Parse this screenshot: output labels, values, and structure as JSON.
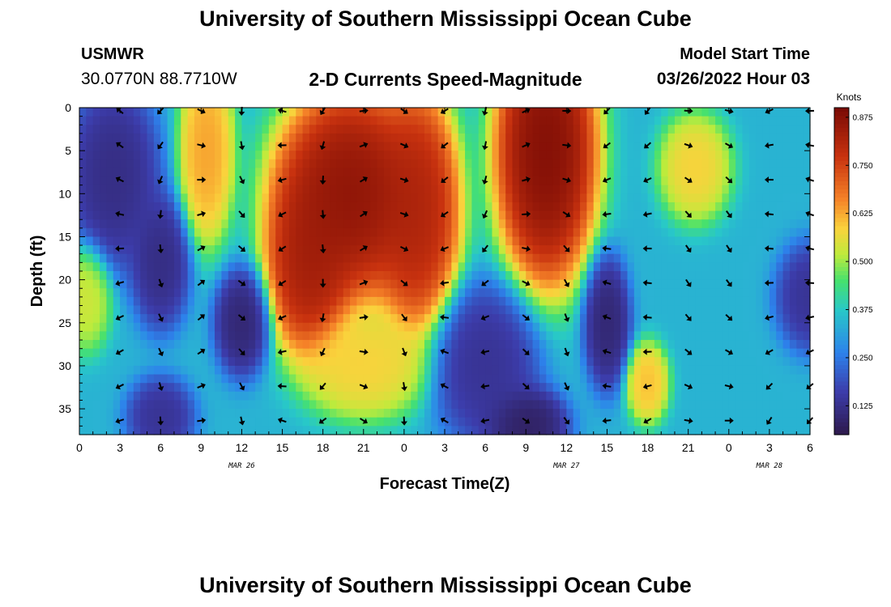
{
  "header": {
    "title": "University of Southern Mississippi Ocean Cube",
    "station_id": "USMWR",
    "coords": "30.0770N  88.7710W",
    "subtitle": "2-D Currents Speed-Magnitude",
    "model_label": "Model Start Time",
    "model_time": "03/26/2022 Hour 03"
  },
  "footer": {
    "title": "University of Southern Mississippi Ocean Cube"
  },
  "chart_data": {
    "type": "heatmap",
    "title": "2-D Currents Speed-Magnitude",
    "xlabel": "Forecast Time(Z)",
    "ylabel": "Depth (ft)",
    "x_hours_range": [
      0,
      54
    ],
    "ylim": [
      0,
      38
    ],
    "y_inverted": true,
    "x_ticks": [
      {
        "hour": 0,
        "label": "0"
      },
      {
        "hour": 3,
        "label": "3"
      },
      {
        "hour": 6,
        "label": "6"
      },
      {
        "hour": 9,
        "label": "9"
      },
      {
        "hour": 12,
        "label": "12"
      },
      {
        "hour": 15,
        "label": "15"
      },
      {
        "hour": 18,
        "label": "18"
      },
      {
        "hour": 21,
        "label": "21"
      },
      {
        "hour": 24,
        "label": "0"
      },
      {
        "hour": 27,
        "label": "3"
      },
      {
        "hour": 30,
        "label": "6"
      },
      {
        "hour": 33,
        "label": "9"
      },
      {
        "hour": 36,
        "label": "12"
      },
      {
        "hour": 39,
        "label": "15"
      },
      {
        "hour": 42,
        "label": "18"
      },
      {
        "hour": 45,
        "label": "21"
      },
      {
        "hour": 48,
        "label": "0"
      },
      {
        "hour": 51,
        "label": "3"
      },
      {
        "hour": 54,
        "label": "6"
      }
    ],
    "date_labels": [
      {
        "hour": 12,
        "label": "MAR 26"
      },
      {
        "hour": 36,
        "label": "MAR 27"
      },
      {
        "hour": 51,
        "label": "MAR 28"
      }
    ],
    "y_ticks": [
      0,
      5,
      10,
      15,
      20,
      25,
      30,
      35
    ],
    "colorbar": {
      "unit": "Knots",
      "range": [
        0.05,
        0.9
      ],
      "ticks": [
        "0.125",
        "0.250",
        "0.375",
        "0.500",
        "0.625",
        "0.750",
        "0.875"
      ],
      "tick_values": [
        0.125,
        0.25,
        0.375,
        0.5,
        0.625,
        0.75,
        0.875
      ]
    },
    "speed_features": [
      {
        "hour": 2.5,
        "depth": 8,
        "speed": 0.1,
        "hspread": 2.2,
        "dspread": 7
      },
      {
        "hour": 6,
        "depth": 18,
        "speed": 0.1,
        "hspread": 1.4,
        "dspread": 5
      },
      {
        "hour": 6,
        "depth": 36,
        "speed": 0.12,
        "hspread": 1.6,
        "dspread": 3
      },
      {
        "hour": 9.4,
        "depth": 5,
        "speed": 0.65,
        "hspread": 1.3,
        "dspread": 7
      },
      {
        "hour": 12,
        "depth": 25,
        "speed": 0.08,
        "hspread": 1.3,
        "dspread": 4
      },
      {
        "hour": 20,
        "depth": 10,
        "speed": 0.9,
        "hspread": 3.6,
        "dspread": 8
      },
      {
        "hour": 17,
        "depth": 18,
        "speed": 0.86,
        "hspread": 2,
        "dspread": 7
      },
      {
        "hour": 25,
        "depth": 12,
        "speed": 0.84,
        "hspread": 2,
        "dspread": 9
      },
      {
        "hour": 21,
        "depth": 30,
        "speed": 0.6,
        "hspread": 3,
        "dspread": 4
      },
      {
        "hour": 30,
        "depth": 30,
        "speed": 0.12,
        "hspread": 2.5,
        "dspread": 6
      },
      {
        "hour": 33,
        "depth": 37,
        "speed": 0.06,
        "hspread": 2,
        "dspread": 3
      },
      {
        "hour": 34.5,
        "depth": 5,
        "speed": 0.92,
        "hspread": 2.4,
        "dspread": 10
      },
      {
        "hour": 39,
        "depth": 25,
        "speed": 0.08,
        "hspread": 1.1,
        "dspread": 5
      },
      {
        "hour": 42,
        "depth": 32,
        "speed": 0.62,
        "hspread": 1,
        "dspread": 3
      },
      {
        "hour": 45.5,
        "depth": 7,
        "speed": 0.6,
        "hspread": 1.7,
        "dspread": 4
      },
      {
        "hour": 54,
        "depth": 22,
        "speed": 0.12,
        "hspread": 1.6,
        "dspread": 4
      },
      {
        "hour": 0.5,
        "depth": 22,
        "speed": 0.55,
        "hspread": 1.2,
        "dspread": 4
      }
    ],
    "vector_hours": [
      3,
      6,
      9,
      12,
      15,
      18,
      21,
      24,
      27,
      30,
      33,
      36,
      39,
      42,
      45,
      48,
      51,
      54
    ],
    "vector_depths": [
      0,
      4,
      8,
      12,
      16,
      20,
      24,
      28,
      32,
      36
    ]
  }
}
